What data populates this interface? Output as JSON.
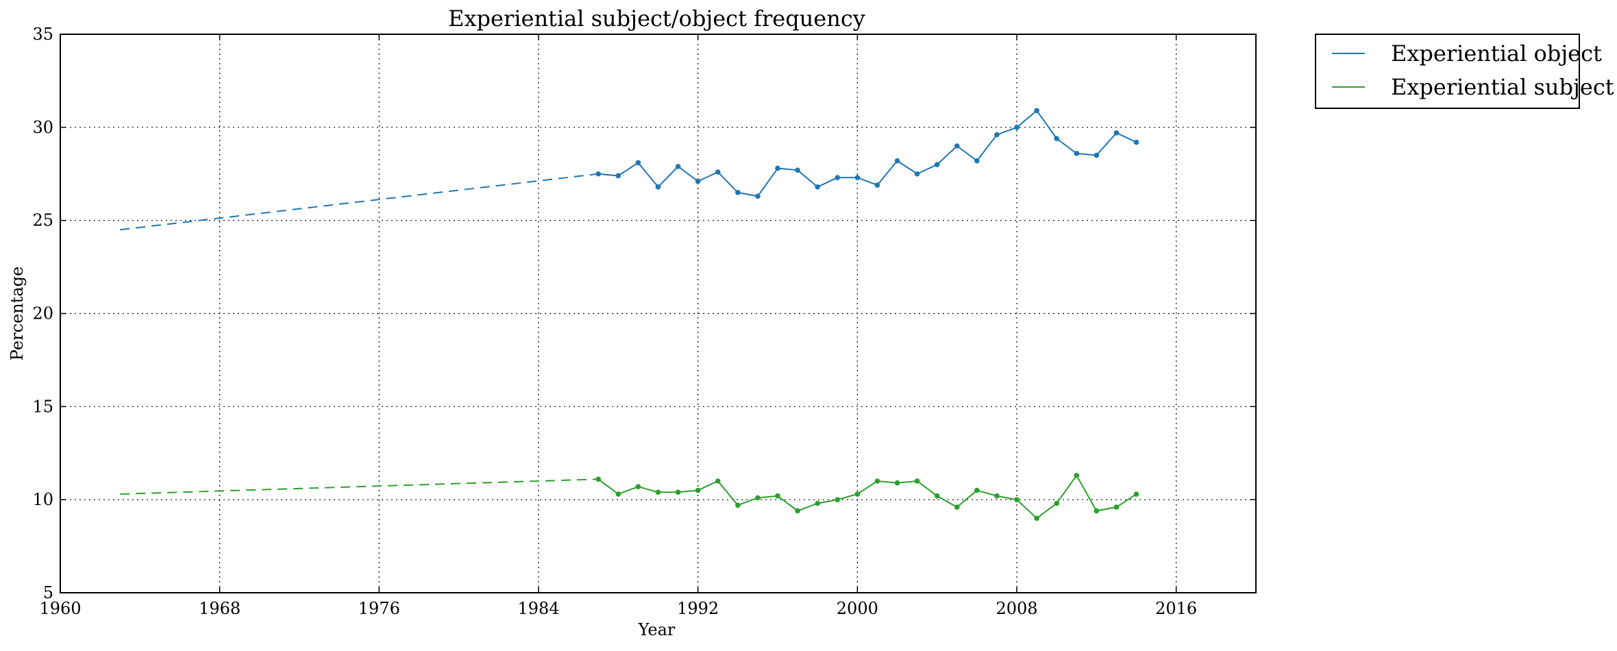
{
  "chart_data": {
    "type": "line",
    "title": "Experiential subject/object frequency",
    "xlabel": "Year",
    "ylabel": "Percentage",
    "xlim": [
      1960,
      2020
    ],
    "ylim": [
      5,
      35
    ],
    "xticks": [
      1960,
      1968,
      1976,
      1984,
      1992,
      2000,
      2008,
      2016
    ],
    "yticks": [
      5,
      10,
      15,
      20,
      25,
      30,
      35
    ],
    "grid": true,
    "legend_position": "outside-top-right",
    "series": [
      {
        "name": "Experiential object",
        "color": "#1f77b4",
        "x": [
          1987,
          1988,
          1989,
          1990,
          1991,
          1992,
          1993,
          1994,
          1995,
          1996,
          1997,
          1998,
          1999,
          2000,
          2001,
          2002,
          2003,
          2004,
          2005,
          2006,
          2007,
          2008,
          2009,
          2010,
          2011,
          2012,
          2013,
          2014
        ],
        "values": [
          27.5,
          27.4,
          28.1,
          26.8,
          27.9,
          27.1,
          27.6,
          26.5,
          26.3,
          27.8,
          27.7,
          26.8,
          27.3,
          27.3,
          26.9,
          28.2,
          27.5,
          28.0,
          29.0,
          28.2,
          29.6,
          30.0,
          30.9,
          29.4,
          28.6,
          28.5,
          29.7,
          29.2
        ],
        "trend": {
          "x": [
            1963,
            1987
          ],
          "values": [
            24.5,
            27.5
          ]
        }
      },
      {
        "name": "Experiential subject",
        "color": "#2ca02c",
        "x": [
          1987,
          1988,
          1989,
          1990,
          1991,
          1992,
          1993,
          1994,
          1995,
          1996,
          1997,
          1998,
          1999,
          2000,
          2001,
          2002,
          2003,
          2004,
          2005,
          2006,
          2007,
          2008,
          2009,
          2010,
          2011,
          2012,
          2013,
          2014
        ],
        "values": [
          11.1,
          10.3,
          10.7,
          10.4,
          10.4,
          10.5,
          11.0,
          9.7,
          10.1,
          10.2,
          9.4,
          9.8,
          10.0,
          10.3,
          11.0,
          10.9,
          11.0,
          10.2,
          9.6,
          10.5,
          10.2,
          10.0,
          9.0,
          9.8,
          11.3,
          9.4,
          9.6,
          10.3
        ],
        "trend": {
          "x": [
            1963,
            1987
          ],
          "values": [
            10.3,
            11.1
          ]
        }
      }
    ]
  }
}
